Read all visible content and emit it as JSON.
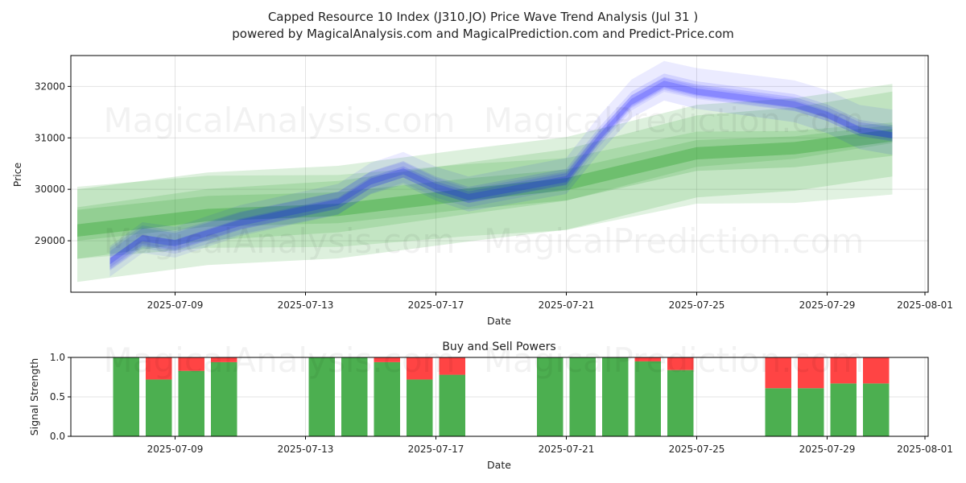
{
  "chart_data": [
    {
      "type": "area",
      "title_line1": "Capped Resource 10 Index (J310.JO) Price Wave Trend Analysis (Jul 31 )",
      "title_line2": "powered by MagicalAnalysis.com and MagicalPrediction.com and Predict-Price.com",
      "xlabel": "Date",
      "ylabel": "Price",
      "x_ticks": [
        "2025-07-09",
        "2025-07-13",
        "2025-07-17",
        "2025-07-21",
        "2025-07-25",
        "2025-07-29",
        "2025-08-01"
      ],
      "y_ticks": [
        29000,
        30000,
        31000,
        32000
      ],
      "ylim": [
        28000,
        32600
      ],
      "grid": true,
      "series": [
        {
          "color": "#0000ff",
          "x": [
            "2025-07-07",
            "2025-07-08",
            "2025-07-09",
            "2025-07-10",
            "2025-07-11",
            "2025-07-14",
            "2025-07-15",
            "2025-07-16",
            "2025-07-17",
            "2025-07-18",
            "2025-07-21",
            "2025-07-22",
            "2025-07-23",
            "2025-07-24",
            "2025-07-25",
            "2025-07-28",
            "2025-07-29",
            "2025-07-30",
            "2025-07-31"
          ],
          "values": [
            28600,
            29050,
            28950,
            29150,
            29350,
            29750,
            30150,
            30350,
            30050,
            29850,
            30200,
            31000,
            31700,
            32050,
            31900,
            31650,
            31450,
            31150,
            31050
          ]
        },
        {
          "color": "#2ca02c",
          "x": [
            "2025-07-06",
            "2025-07-10",
            "2025-07-14",
            "2025-07-18",
            "2025-07-21",
            "2025-07-25",
            "2025-07-28",
            "2025-07-31"
          ],
          "values": [
            29200,
            29500,
            29600,
            29900,
            30100,
            30700,
            30800,
            31050
          ]
        }
      ]
    },
    {
      "type": "bar",
      "title": "Buy and Sell Powers",
      "xlabel": "Date",
      "ylabel": "Signal Strength",
      "x_ticks": [
        "2025-07-09",
        "2025-07-13",
        "2025-07-17",
        "2025-07-21",
        "2025-07-25",
        "2025-07-29",
        "2025-08-01"
      ],
      "y_ticks": [
        "0.0",
        "0.5",
        "1.0"
      ],
      "ylim": [
        0,
        1
      ],
      "series": [
        {
          "name": "Buy",
          "color": "#4caf50"
        },
        {
          "name": "Sell",
          "color": "#ff4444"
        }
      ],
      "categories": [
        "2025-07-07",
        "2025-07-08",
        "2025-07-09",
        "2025-07-10",
        "2025-07-13",
        "2025-07-14",
        "2025-07-15",
        "2025-07-16",
        "2025-07-17",
        "2025-07-20",
        "2025-07-21",
        "2025-07-22",
        "2025-07-23",
        "2025-07-24",
        "2025-07-27",
        "2025-07-28",
        "2025-07-29",
        "2025-07-30"
      ],
      "buy": [
        1.0,
        0.72,
        0.83,
        0.94,
        1.0,
        1.0,
        0.94,
        0.72,
        0.78,
        1.0,
        1.0,
        1.0,
        0.95,
        0.84,
        0.61,
        0.61,
        0.67,
        0.67
      ]
    }
  ],
  "watermarks": [
    "MagicalAnalysis.com",
    "MagicalPrediction.com"
  ]
}
